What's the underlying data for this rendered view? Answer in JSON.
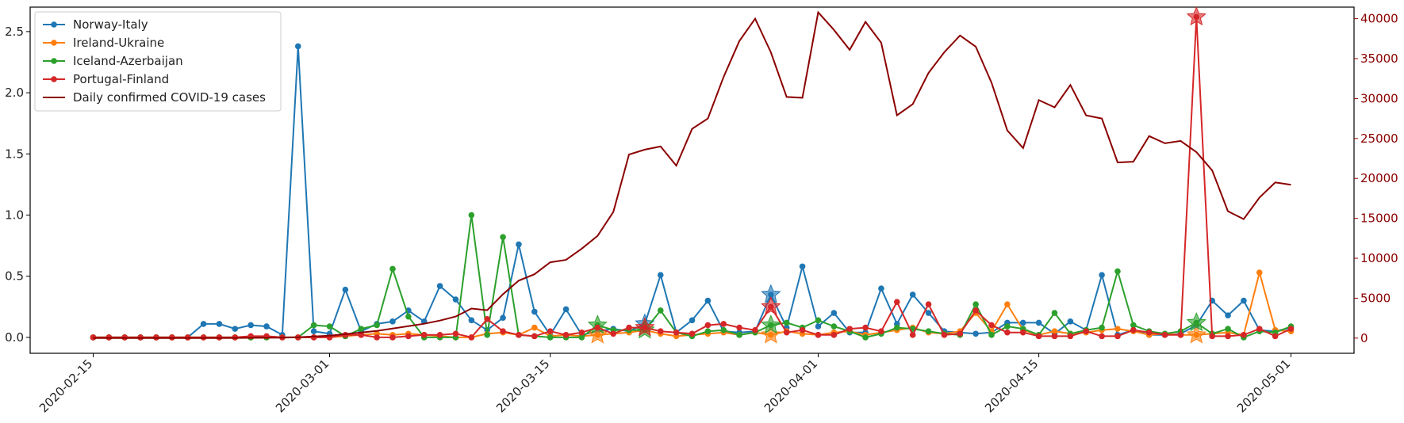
{
  "chart_data": {
    "type": "line",
    "x": [
      "2020-02-15",
      "2020-02-16",
      "2020-02-17",
      "2020-02-18",
      "2020-02-19",
      "2020-02-20",
      "2020-02-21",
      "2020-02-22",
      "2020-02-23",
      "2020-02-24",
      "2020-02-25",
      "2020-02-26",
      "2020-02-27",
      "2020-02-28",
      "2020-02-29",
      "2020-03-01",
      "2020-03-02",
      "2020-03-03",
      "2020-03-04",
      "2020-03-05",
      "2020-03-06",
      "2020-03-07",
      "2020-03-08",
      "2020-03-09",
      "2020-03-10",
      "2020-03-11",
      "2020-03-12",
      "2020-03-13",
      "2020-03-14",
      "2020-03-15",
      "2020-03-16",
      "2020-03-17",
      "2020-03-18",
      "2020-03-19",
      "2020-03-20",
      "2020-03-21",
      "2020-03-22",
      "2020-03-23",
      "2020-03-24",
      "2020-03-25",
      "2020-03-26",
      "2020-03-27",
      "2020-03-28",
      "2020-03-29",
      "2020-03-30",
      "2020-03-31",
      "2020-04-01",
      "2020-04-02",
      "2020-04-03",
      "2020-04-04",
      "2020-04-05",
      "2020-04-06",
      "2020-04-07",
      "2020-04-08",
      "2020-04-09",
      "2020-04-10",
      "2020-04-11",
      "2020-04-12",
      "2020-04-13",
      "2020-04-14",
      "2020-04-15",
      "2020-04-16",
      "2020-04-17",
      "2020-04-18",
      "2020-04-19",
      "2020-04-20",
      "2020-04-21",
      "2020-04-22",
      "2020-04-23",
      "2020-04-24",
      "2020-04-25",
      "2020-04-26",
      "2020-04-27",
      "2020-04-28",
      "2020-04-29",
      "2020-04-30",
      "2020-05-01"
    ],
    "xlim": [
      "2020-02-11",
      "2020-05-05"
    ],
    "xticks": [
      "2020-02-15",
      "2020-03-01",
      "2020-03-15",
      "2020-04-01",
      "2020-04-15",
      "2020-05-01"
    ],
    "ylim": [
      -0.13,
      2.7
    ],
    "yticks": [
      {
        "value": 0,
        "label": "0.0"
      },
      0.5,
      {
        "value": 1,
        "label": "1.0"
      },
      1.5,
      {
        "value": 2,
        "label": "2.0"
      },
      2.5
    ],
    "y2lim": [
      -1900,
      41450
    ],
    "y2ticks": [
      0,
      5000,
      10000,
      15000,
      20000,
      25000,
      30000,
      35000,
      40000
    ],
    "y2color": "#8b0000",
    "legend": "upper left",
    "series": [
      {
        "name": "Norway-Italy",
        "color": "#1f77b4",
        "markers": true,
        "highlights": [
          35,
          43
        ],
        "values": [
          0,
          0,
          0,
          0,
          0,
          0,
          0,
          0.11,
          0.11,
          0.07,
          0.1,
          0.09,
          0.02,
          2.38,
          0.05,
          0.03,
          0.39,
          0.05,
          0.11,
          0.13,
          0.22,
          0.13,
          0.42,
          0.31,
          0.14,
          0.06,
          0.16,
          0.76,
          0.21,
          0.02,
          0.23,
          0.02,
          0.05,
          0.07,
          0.05,
          0.11,
          0.51,
          0.04,
          0.14,
          0.3,
          0.05,
          0.04,
          0.05,
          0.35,
          0.08,
          0.58,
          0.09,
          0.2,
          0.04,
          0.04,
          0.4,
          0.11,
          0.35,
          0.2,
          0.05,
          0.04,
          0.03,
          0.04,
          0.12,
          0.12,
          0.12,
          0.03,
          0.13,
          0.06,
          0.51,
          0.02,
          0.06,
          0.02,
          0.02,
          0.03,
          0.1,
          0.3,
          0.18,
          0.3,
          0.06,
          0.05,
          0.08
        ]
      },
      {
        "name": "Ireland-Ukraine",
        "color": "#ff7f0e",
        "markers": true,
        "highlights": [
          32,
          43,
          70
        ],
        "values": [
          0,
          0,
          0,
          0,
          0,
          0,
          0,
          0,
          0,
          0,
          0,
          0,
          0,
          0,
          0,
          0,
          0.01,
          0.02,
          0.03,
          0.02,
          0.03,
          0.02,
          0.01,
          0,
          0,
          0.03,
          0.04,
          0.02,
          0.08,
          0.01,
          0.02,
          0.01,
          0.02,
          0.03,
          0.04,
          0.06,
          0.03,
          0.01,
          0.02,
          0.03,
          0.04,
          0.02,
          0.04,
          0.02,
          0.05,
          0.03,
          0.02,
          0.04,
          0.05,
          0.02,
          0.04,
          0.06,
          0.08,
          0.04,
          0.03,
          0.05,
          0.2,
          0.05,
          0.27,
          0.06,
          0.02,
          0.05,
          0.03,
          0.04,
          0.06,
          0.07,
          0.05,
          0.02,
          0.03,
          0.02,
          0.02,
          0.03,
          0.04,
          0.02,
          0.53,
          0.06,
          0.05
        ]
      },
      {
        "name": "Iceland-Azerbaijan",
        "color": "#2ca02c",
        "markers": true,
        "highlights": [
          32,
          35,
          43,
          70
        ],
        "values": [
          0,
          0,
          0,
          0,
          0,
          0,
          0,
          0,
          0,
          0,
          0,
          0,
          0,
          0,
          0.1,
          0.09,
          0.01,
          0.07,
          0.1,
          0.56,
          0.17,
          0,
          0,
          0,
          1,
          0.02,
          0.82,
          0.02,
          0.01,
          0,
          0,
          0,
          0.1,
          0.06,
          0.06,
          0.06,
          0.22,
          0.04,
          0.01,
          0.05,
          0.06,
          0.02,
          0.04,
          0.1,
          0.12,
          0.08,
          0.14,
          0.09,
          0.05,
          0,
          0.03,
          0.08,
          0.07,
          0.05,
          0.03,
          0.02,
          0.27,
          0.02,
          0.09,
          0.07,
          0.02,
          0.2,
          0.03,
          0.06,
          0.08,
          0.54,
          0.1,
          0.05,
          0.03,
          0.05,
          0.12,
          0.03,
          0.07,
          0,
          0.05,
          0.04,
          0.09
        ]
      },
      {
        "name": "Portugal-Finland",
        "color": "#d62728",
        "markers": true,
        "highlights": [
          35,
          43,
          70
        ],
        "values": [
          0,
          0,
          0,
          0,
          0,
          0,
          0,
          0,
          0,
          0,
          0.01,
          0.01,
          0,
          0,
          0,
          0,
          0.02,
          0.02,
          0,
          0,
          0.01,
          0.02,
          0.02,
          0.03,
          0,
          0.15,
          0.05,
          0.02,
          0.01,
          0.05,
          0.02,
          0.04,
          0.08,
          0.03,
          0.08,
          0.08,
          0.05,
          0.04,
          0.03,
          0.1,
          0.11,
          0.08,
          0.06,
          0.25,
          0.04,
          0.06,
          0.02,
          0.02,
          0.07,
          0.08,
          0.05,
          0.29,
          0.02,
          0.27,
          0.02,
          0.03,
          0.22,
          0.1,
          0.04,
          0.04,
          0.01,
          0.01,
          0.01,
          0.05,
          0.01,
          0.01,
          0.06,
          0.04,
          0.02,
          0.02,
          2.62,
          0.01,
          0.01,
          0.02,
          0.07,
          0.01,
          0.07
        ]
      },
      {
        "name": "Daily confirmed COVID-19 cases",
        "color": "#8b0000",
        "axis": "y2",
        "markers": false,
        "values": [
          0,
          0,
          0,
          0,
          0,
          0,
          0,
          0,
          10,
          20,
          30,
          40,
          60,
          100,
          200,
          300,
          500,
          700,
          900,
          1200,
          1500,
          1800,
          2200,
          2700,
          3700,
          3500,
          5500,
          7200,
          8000,
          9500,
          9800,
          11200,
          12800,
          15800,
          23000,
          23600,
          24000,
          21600,
          26200,
          27500,
          32700,
          37200,
          40000,
          35800,
          30200,
          30100,
          40800,
          38600,
          36100,
          39600,
          37000,
          27900,
          29300,
          33200,
          35800,
          37900,
          36500,
          32000,
          26000,
          23800,
          29800,
          28900,
          31700,
          27900,
          27500,
          22000,
          22100,
          25300,
          24400,
          24700,
          23300,
          21000,
          15900,
          14900,
          17600,
          19500,
          19200
        ]
      }
    ]
  }
}
